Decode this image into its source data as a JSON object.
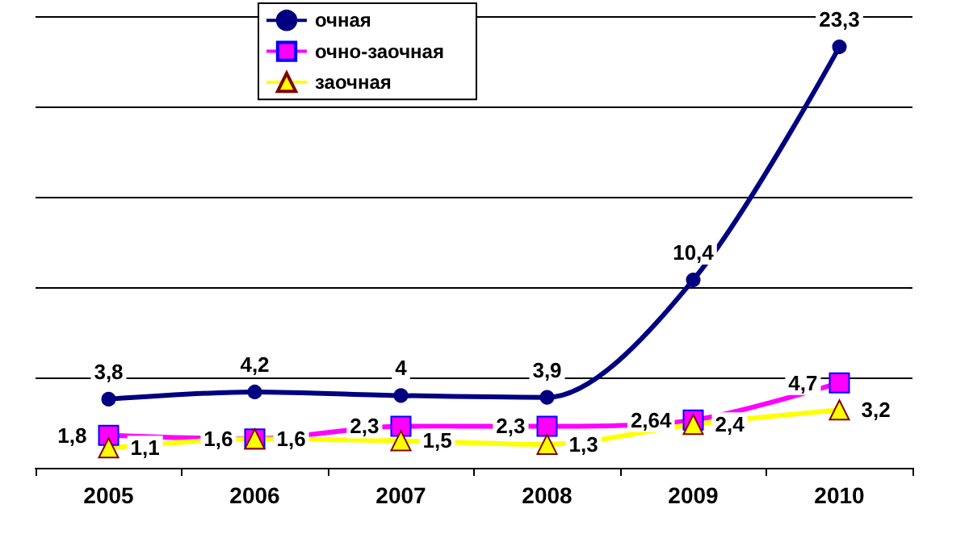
{
  "chart_data": {
    "type": "line",
    "categories": [
      "2005",
      "2006",
      "2007",
      "2008",
      "2009",
      "2010"
    ],
    "series": [
      {
        "name": "очная",
        "color": "#000080",
        "marker": "circle",
        "values": [
          3.8,
          4.2,
          4,
          3.9,
          10.4,
          23.3
        ],
        "value_labels": [
          "3,8",
          "4,2",
          "4",
          "3,9",
          "10,4",
          "23,3"
        ]
      },
      {
        "name": "очно-заочная",
        "color": "#ff00ff",
        "marker": "square",
        "values": [
          1.8,
          1.6,
          2.3,
          2.3,
          2.64,
          4.7
        ],
        "value_labels": [
          "1,8",
          "1,6",
          "2,3",
          "2,3",
          "2,64",
          "4,7"
        ]
      },
      {
        "name": "заочная",
        "color": "#ffff00",
        "marker": "triangle",
        "values": [
          1.1,
          1.6,
          1.5,
          1.3,
          2.4,
          3.2
        ],
        "value_labels": [
          "1,1",
          "1,6",
          "1,5",
          "1,3",
          "2,4",
          "3,2"
        ]
      }
    ],
    "ylim": [
      0,
      25
    ],
    "yticks": [
      {
        "value": 0,
        "label": null
      },
      {
        "value": 5,
        "label": null
      },
      {
        "value": 10,
        "label": null
      },
      {
        "value": 15,
        "label": null
      },
      {
        "value": 20,
        "label": null
      },
      {
        "value": 25,
        "label": null
      }
    ],
    "tick_labels": "x",
    "grid": "y",
    "legend": "top"
  }
}
